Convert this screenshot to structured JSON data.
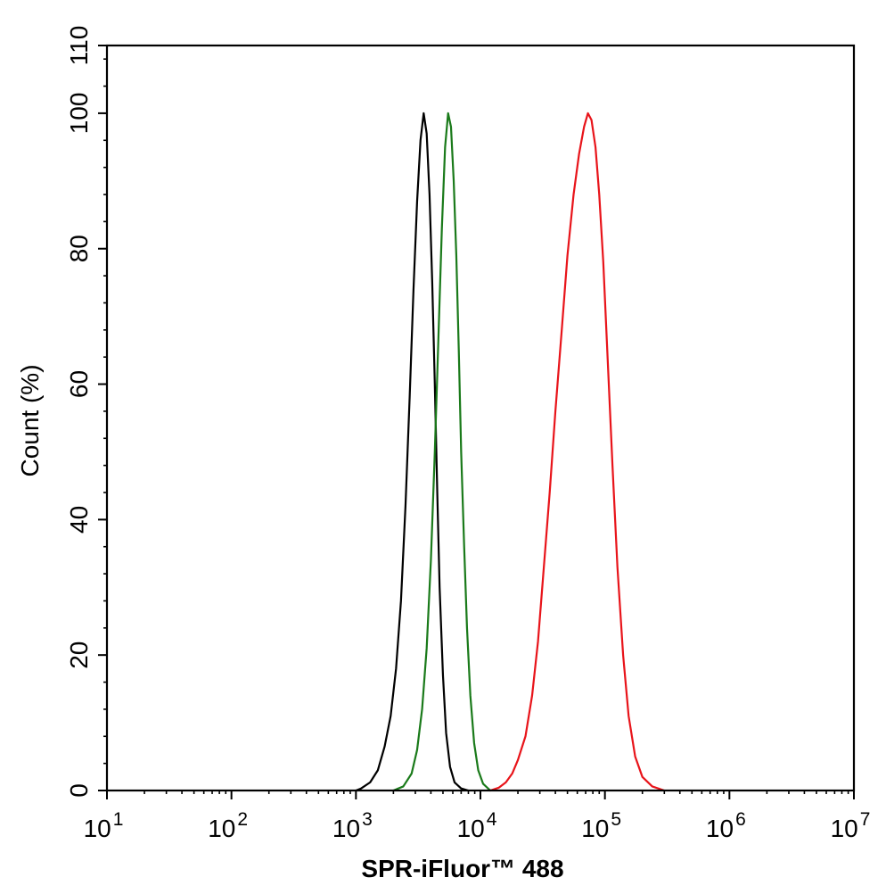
{
  "chart_data": {
    "type": "line",
    "title": "",
    "xlabel": "SPR-iFluor™ 488",
    "ylabel": "Count  (%)",
    "xscale": "log",
    "xlim": [
      10,
      10000000
    ],
    "ylim": [
      0,
      110
    ],
    "grid": false,
    "legend": "none",
    "x_ticks": [
      {
        "value": 10,
        "base": "10",
        "exp": "1"
      },
      {
        "value": 100,
        "base": "10",
        "exp": "2"
      },
      {
        "value": 1000,
        "base": "10",
        "exp": "3"
      },
      {
        "value": 10000,
        "base": "10",
        "exp": "4"
      },
      {
        "value": 100000,
        "base": "10",
        "exp": "5"
      },
      {
        "value": 1000000,
        "base": "10",
        "exp": "6"
      },
      {
        "value": 10000000,
        "base": "10",
        "exp": "7"
      }
    ],
    "y_ticks": [
      0,
      20,
      40,
      60,
      80,
      100,
      110
    ],
    "series": [
      {
        "color": "#000000",
        "points": [
          [
            1000,
            0
          ],
          [
            1100,
            0.3
          ],
          [
            1300,
            1.2
          ],
          [
            1500,
            3
          ],
          [
            1700,
            6.5
          ],
          [
            1900,
            11
          ],
          [
            2100,
            18
          ],
          [
            2300,
            28
          ],
          [
            2500,
            42
          ],
          [
            2700,
            58
          ],
          [
            2900,
            74
          ],
          [
            3100,
            87
          ],
          [
            3300,
            96
          ],
          [
            3500,
            100
          ],
          [
            3700,
            97
          ],
          [
            3900,
            88
          ],
          [
            4100,
            75
          ],
          [
            4300,
            60
          ],
          [
            4500,
            44
          ],
          [
            4700,
            30
          ],
          [
            5000,
            17
          ],
          [
            5300,
            8.5
          ],
          [
            5700,
            3.5
          ],
          [
            6200,
            1.2
          ],
          [
            7000,
            0.3
          ],
          [
            8000,
            0
          ]
        ]
      },
      {
        "color": "#1a7a1a",
        "points": [
          [
            2000,
            0
          ],
          [
            2400,
            0.6
          ],
          [
            2800,
            2.5
          ],
          [
            3100,
            6
          ],
          [
            3400,
            12
          ],
          [
            3700,
            21
          ],
          [
            4000,
            34
          ],
          [
            4300,
            50
          ],
          [
            4600,
            67
          ],
          [
            4900,
            83
          ],
          [
            5200,
            95
          ],
          [
            5500,
            100
          ],
          [
            5800,
            98
          ],
          [
            6100,
            90
          ],
          [
            6400,
            79
          ],
          [
            6700,
            65
          ],
          [
            7000,
            50
          ],
          [
            7400,
            36
          ],
          [
            7800,
            24
          ],
          [
            8300,
            14
          ],
          [
            8900,
            7
          ],
          [
            9600,
            3
          ],
          [
            10500,
            1
          ],
          [
            12000,
            0
          ]
        ]
      },
      {
        "color": "#e8141a",
        "points": [
          [
            12000,
            0
          ],
          [
            14000,
            0.4
          ],
          [
            16000,
            1.2
          ],
          [
            18000,
            2.5
          ],
          [
            20000,
            4.5
          ],
          [
            23000,
            8
          ],
          [
            26000,
            14
          ],
          [
            29000,
            22
          ],
          [
            32000,
            32
          ],
          [
            36000,
            44
          ],
          [
            40000,
            56
          ],
          [
            45000,
            68
          ],
          [
            50000,
            79
          ],
          [
            56000,
            88
          ],
          [
            62000,
            94
          ],
          [
            68000,
            98
          ],
          [
            73000,
            100
          ],
          [
            78000,
            99
          ],
          [
            84000,
            95
          ],
          [
            90000,
            88
          ],
          [
            97000,
            78
          ],
          [
            105000,
            64
          ],
          [
            115000,
            48
          ],
          [
            126000,
            33
          ],
          [
            140000,
            20
          ],
          [
            155000,
            11
          ],
          [
            175000,
            5
          ],
          [
            200000,
            2
          ],
          [
            240000,
            0.6
          ],
          [
            300000,
            0
          ]
        ]
      }
    ]
  }
}
